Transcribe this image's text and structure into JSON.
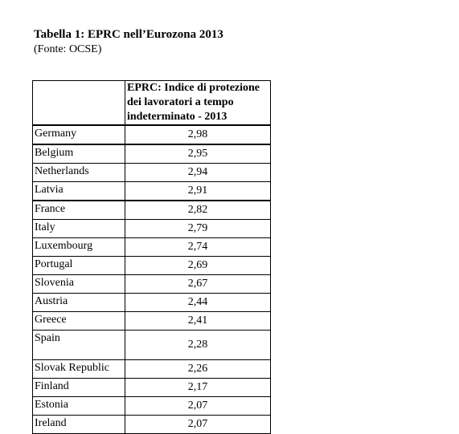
{
  "caption": {
    "title": "Tabella 1: EPRC nell’Eurozona 2013",
    "source": "(Fonte: OCSE)"
  },
  "table": {
    "header": "EPRC: Indice di protezione dei lavoratori a tempo indeterminato - 2013",
    "rows": [
      {
        "country": "Germany",
        "value": "2,98"
      },
      {
        "country": "Belgium",
        "value": "2,95"
      },
      {
        "country": "Netherlands",
        "value": "2,94"
      },
      {
        "country": "Latvia",
        "value": "2,91"
      },
      {
        "country": "France",
        "value": "2,82"
      },
      {
        "country": "Italy",
        "value": "2,79"
      },
      {
        "country": "Luxembourg",
        "value": "2,74"
      },
      {
        "country": "Portugal",
        "value": "2,69"
      },
      {
        "country": "Slovenia",
        "value": "2,67"
      },
      {
        "country": "Austria",
        "value": "2,44"
      },
      {
        "country": "Greece",
        "value": "2,41"
      },
      {
        "country": "Spain",
        "value": "2,28"
      },
      {
        "country": "Slovak Republic",
        "value": "2,26"
      },
      {
        "country": "Finland",
        "value": "2,17"
      },
      {
        "country": "Estonia",
        "value": "2,07"
      },
      {
        "country": "Ireland",
        "value": "2,07"
      }
    ]
  }
}
